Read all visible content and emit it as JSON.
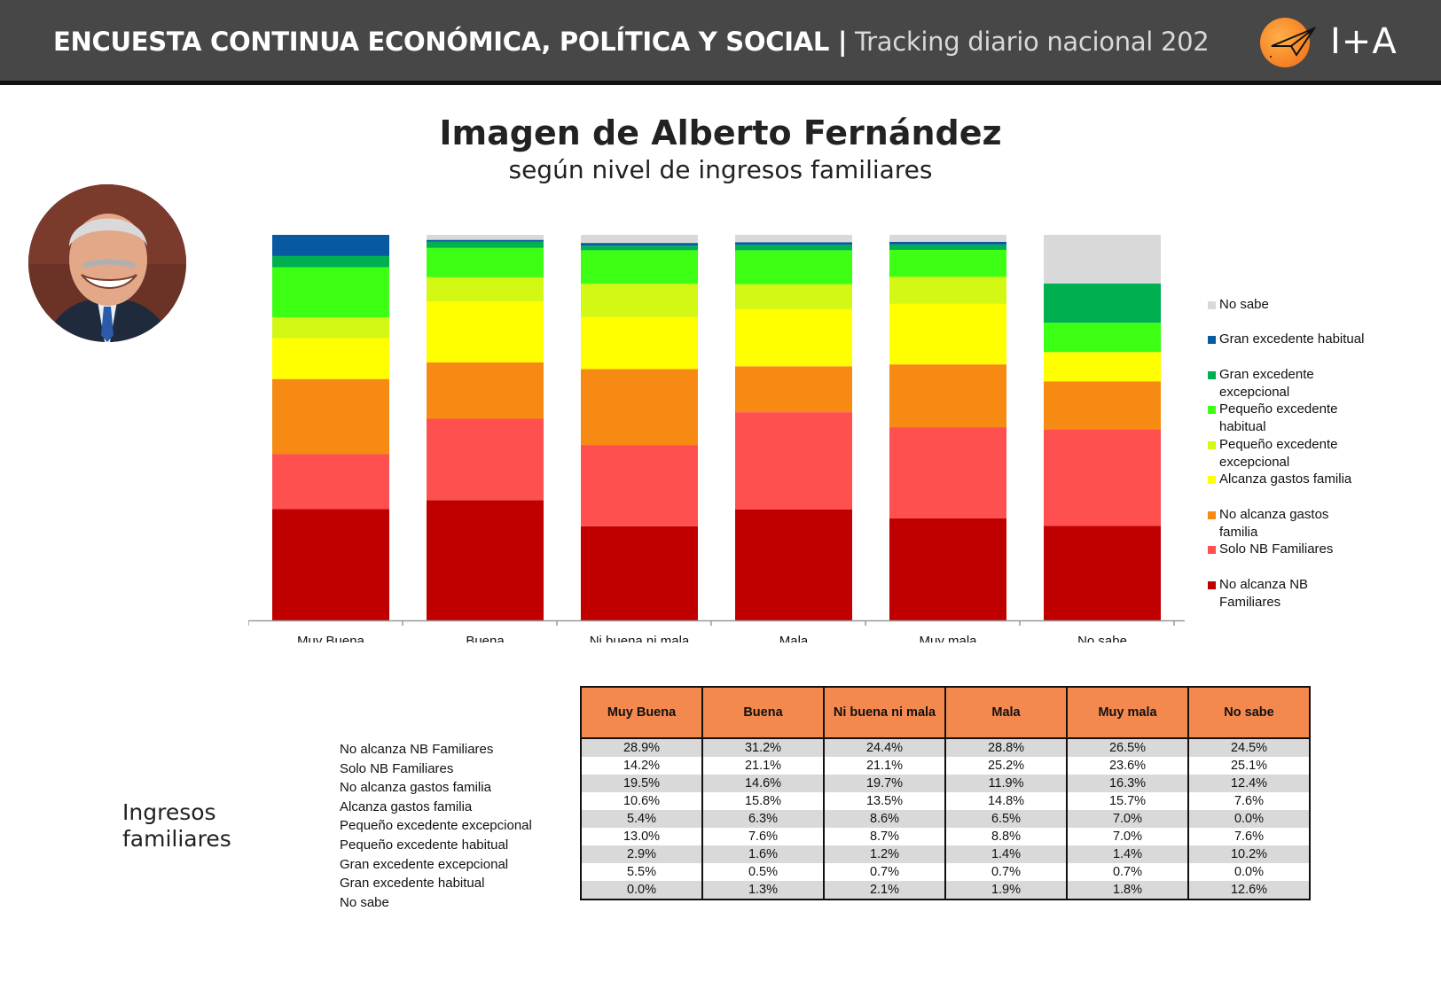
{
  "header": {
    "title_bold": "ENCUESTA CONTINUA ECONÓMICA, POLÍTICA Y SOCIAL |",
    "title_light": "Tracking diario nacional 202",
    "logo_text": "I+A"
  },
  "title": "Imagen de Alberto Fernández",
  "subtitle": "según nivel de ingresos familiares",
  "side_label": "Ingresos familiares",
  "chart_data": {
    "type": "bar",
    "stacked": true,
    "normalized": true,
    "categories": [
      "Muy Buena",
      "Buena",
      "Ni buena ni mala",
      "Mala",
      "Muy mala",
      "No sabe"
    ],
    "series": [
      {
        "name": "No alcanza NB Familiares",
        "color": "#c00000",
        "values": [
          28.9,
          31.2,
          24.4,
          28.8,
          26.5,
          24.5
        ]
      },
      {
        "name": "Solo NB Familiares",
        "color": "#ff5050",
        "values": [
          14.2,
          21.1,
          21.1,
          25.2,
          23.6,
          25.1
        ]
      },
      {
        "name": "No alcanza gastos familia",
        "color": "#f78a12",
        "values": [
          19.5,
          14.6,
          19.7,
          11.9,
          16.3,
          12.4
        ]
      },
      {
        "name": "Alcanza gastos familia",
        "color": "#ffff00",
        "values": [
          10.6,
          15.8,
          13.5,
          14.8,
          15.7,
          7.6
        ]
      },
      {
        "name": "Pequeño excedente excepcional",
        "color": "#d2f814",
        "values": [
          5.4,
          6.3,
          8.6,
          6.5,
          7.0,
          0.0
        ]
      },
      {
        "name": "Pequeño excedente habitual",
        "color": "#3cff14",
        "values": [
          13.0,
          7.6,
          8.7,
          8.8,
          7.0,
          7.6
        ]
      },
      {
        "name": "Gran excedente excepcional",
        "color": "#00b050",
        "values": [
          2.9,
          1.6,
          1.2,
          1.4,
          1.4,
          10.2
        ]
      },
      {
        "name": "Gran excedente habitual",
        "color": "#075aa0",
        "values": [
          5.5,
          0.5,
          0.7,
          0.7,
          0.7,
          0.0
        ]
      },
      {
        "name": "No sabe",
        "color": "#d9d9d9",
        "values": [
          0.0,
          1.3,
          2.1,
          1.9,
          1.8,
          12.6
        ]
      }
    ],
    "legend": {
      "position": "right",
      "items": [
        {
          "label": "No sabe",
          "color": "#d9d9d9"
        },
        {
          "label": "Gran excedente habitual",
          "color": "#075aa0"
        },
        {
          "label": "Gran excedente excepcional",
          "color": "#00b050"
        },
        {
          "label": "Pequeño excedente habitual",
          "color": "#3cff14"
        },
        {
          "label": "Pequeño excedente excepcional",
          "color": "#d2f814"
        },
        {
          "label": "Alcanza gastos familia",
          "color": "#ffff00"
        },
        {
          "label": "No alcanza gastos familia",
          "color": "#f78a12"
        },
        {
          "label": "Solo NB Familiares",
          "color": "#ff5050"
        },
        {
          "label": "No alcanza NB Familiares",
          "color": "#c00000"
        }
      ]
    },
    "grid": false
  },
  "table": {
    "headers": [
      "Muy Buena",
      "Buena",
      "Ni buena ni mala",
      "Mala",
      "Muy mala",
      "No sabe"
    ],
    "rows": [
      {
        "label": "No alcanza NB Familiares",
        "cells": [
          "28.9%",
          "31.2%",
          "24.4%",
          "28.8%",
          "26.5%",
          "24.5%"
        ]
      },
      {
        "label": "Solo NB Familiares",
        "cells": [
          "14.2%",
          "21.1%",
          "21.1%",
          "25.2%",
          "23.6%",
          "25.1%"
        ]
      },
      {
        "label": "No alcanza gastos familia",
        "cells": [
          "19.5%",
          "14.6%",
          "19.7%",
          "11.9%",
          "16.3%",
          "12.4%"
        ]
      },
      {
        "label": "Alcanza gastos familia",
        "cells": [
          "10.6%",
          "15.8%",
          "13.5%",
          "14.8%",
          "15.7%",
          "7.6%"
        ]
      },
      {
        "label": "Pequeño excedente excepcional",
        "cells": [
          "5.4%",
          "6.3%",
          "8.6%",
          "6.5%",
          "7.0%",
          "0.0%"
        ]
      },
      {
        "label": "Pequeño excedente habitual",
        "cells": [
          "13.0%",
          "7.6%",
          "8.7%",
          "8.8%",
          "7.0%",
          "7.6%"
        ]
      },
      {
        "label": "Gran excedente excepcional",
        "cells": [
          "2.9%",
          "1.6%",
          "1.2%",
          "1.4%",
          "1.4%",
          "10.2%"
        ]
      },
      {
        "label": "Gran excedente habitual",
        "cells": [
          "5.5%",
          "0.5%",
          "0.7%",
          "0.7%",
          "0.7%",
          "0.0%"
        ]
      },
      {
        "label": "No sabe",
        "cells": [
          "0.0%",
          "1.3%",
          "2.1%",
          "1.9%",
          "1.8%",
          "12.6%"
        ]
      }
    ]
  }
}
